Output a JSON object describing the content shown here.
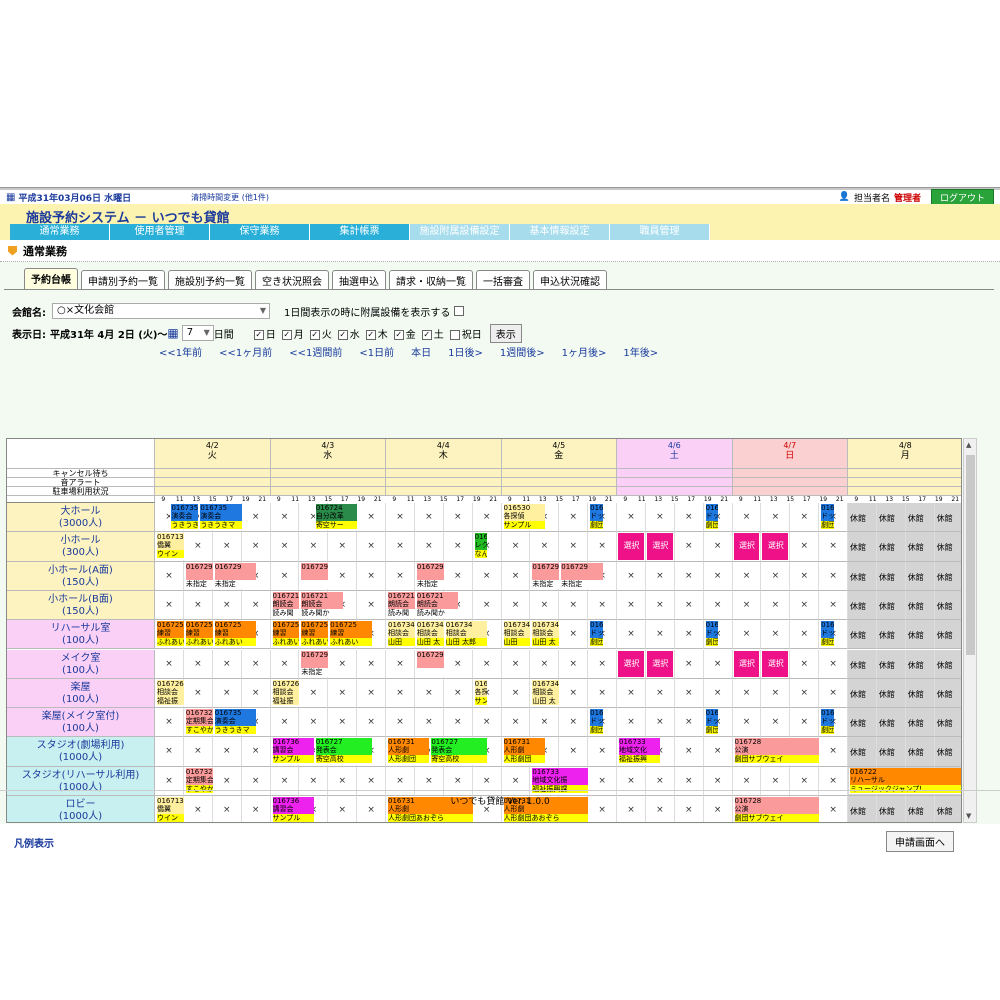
{
  "topbar": {
    "date": "平成31年03月06日 水曜日",
    "notice": "清掃時間変更 (他1件)",
    "user_label": "担当者名",
    "role": "管理者",
    "logout": "ログアウト"
  },
  "header": {
    "title": "施設予約システム － いつでも貸館"
  },
  "mainnav": [
    "通常業務",
    "使用者管理",
    "保守業務",
    "集計帳票",
    "施設附属設備設定",
    "基本情報設定",
    "職員管理"
  ],
  "section_title": "通常業務",
  "tabs": [
    "予約台帳",
    "申請別予約一覧",
    "施設別予約一覧",
    "空き状況照会",
    "抽選申込",
    "請求・収納一覧",
    "一括審査",
    "申込状況確認"
  ],
  "controls": {
    "venue_label": "会館名:",
    "venue_value": "○×文化会館",
    "equip_label": "1日間表示の時に附属設備を表示する",
    "date_label": "表示日:",
    "date_value": "平成31年 4月 2日 (火)～",
    "days_value": "7",
    "days_unit": "日間",
    "weekdays": [
      "日",
      "月",
      "火",
      "水",
      "木",
      "金",
      "土",
      "祝日"
    ],
    "weekday_checked": [
      true,
      true,
      true,
      true,
      true,
      true,
      true,
      false
    ],
    "show_button": "表示"
  },
  "navlinks": [
    "<<1年前",
    "<<1ヶ月前",
    "<<1週間前",
    "<1日前",
    "本日",
    "1日後>",
    "1週間後>",
    "1ヶ月後>",
    "1年後>"
  ],
  "days": [
    {
      "date": "4/2",
      "dow": "火",
      "color": "#fdf3c0",
      "text": "#000"
    },
    {
      "date": "4/3",
      "dow": "水",
      "color": "#fdf3c0",
      "text": "#000"
    },
    {
      "date": "4/4",
      "dow": "木",
      "color": "#fdf3c0",
      "text": "#000"
    },
    {
      "date": "4/5",
      "dow": "金",
      "color": "#fdf3c0",
      "text": "#000"
    },
    {
      "date": "4/6",
      "dow": "土",
      "color": "#fbd0f7",
      "text": "#1a3a9c"
    },
    {
      "date": "4/7",
      "dow": "日",
      "color": "#fbd0d0",
      "text": "#c00"
    },
    {
      "date": "4/8",
      "dow": "月",
      "color": "#fdf3c0",
      "text": "#000"
    }
  ],
  "hours": [
    "9",
    "11",
    "13",
    "15",
    "17",
    "19",
    "21"
  ],
  "status_rows": [
    "キャンセル待ち",
    "音アラート",
    "駐車場利用状況"
  ],
  "facilities": [
    {
      "name": "大ホール",
      "cap": "(3000人)",
      "color": "#fdf3c0"
    },
    {
      "name": "小ホール",
      "cap": "(300人)",
      "color": "#fdf3c0"
    },
    {
      "name": "小ホール(A面)",
      "cap": "(150人)",
      "color": "#fdf3c0"
    },
    {
      "name": "小ホール(B面)",
      "cap": "(150人)",
      "color": "#fdf3c0"
    },
    {
      "name": "リハーサル室",
      "cap": "(100人)",
      "color": "#fbd0f7"
    },
    {
      "name": "メイク室",
      "cap": "(100人)",
      "color": "#fbd0f7"
    },
    {
      "name": "楽屋",
      "cap": "(100人)",
      "color": "#fbd0f7"
    },
    {
      "name": "楽屋(メイク室付)",
      "cap": "(100人)",
      "color": "#fbd0f7"
    },
    {
      "name": "スタジオ(劇場利用)",
      "cap": "(1000人)",
      "color": "#c8f0f0"
    },
    {
      "name": "スタジオ(リハーサル利用)",
      "cap": "(1000人)",
      "color": "#c8f0f0"
    },
    {
      "name": "ロビー",
      "cap": "(1000人)",
      "color": "#c8f0f0"
    }
  ],
  "closed_label": "休館",
  "legend": "凡例表示",
  "apply_button": "申請画面へ",
  "footer": "いつでも貸館 Ver. 1.0.0",
  "bookings": [
    {
      "r": 0,
      "d": 0,
      "s": 1,
      "w": 2,
      "c": "#1e78e0",
      "t": [
        "016735",
        "演奏会",
        "うきうきマ"
      ],
      "b": "#ff0"
    },
    {
      "r": 0,
      "d": 0,
      "s": 3,
      "w": 3,
      "c": "#1e78e0",
      "t": [
        "016735",
        "演奏会",
        "うきうきマ"
      ],
      "b": "#ff0"
    },
    {
      "r": 0,
      "d": 1,
      "s": 3,
      "w": 3,
      "c": "#2a8a4a",
      "t": [
        "016724",
        "自分改革",
        "寄空サー"
      ],
      "b": "#ff0"
    },
    {
      "r": 0,
      "d": 3,
      "s": 0,
      "w": 3,
      "c": "#fff0a0",
      "t": [
        "016530",
        "各探偵",
        "サンプル"
      ],
      "b": "#ff0"
    },
    {
      "r": 0,
      "d": 3,
      "s": 6,
      "w": 1,
      "c": "#1e78e0",
      "t": [
        "016720",
        "ドッグス",
        "劇団ここに"
      ],
      "b": "#ff0"
    },
    {
      "r": 0,
      "d": 4,
      "s": 6,
      "w": 1,
      "c": "#1e78e0",
      "t": [
        "016720",
        "ドッグス",
        "劇団ここに"
      ],
      "b": "#ff0"
    },
    {
      "r": 0,
      "d": 5,
      "s": 6,
      "w": 1,
      "c": "#1e78e0",
      "t": [
        "016720",
        "ドッグス",
        "劇団ここに"
      ],
      "b": "#ff0"
    },
    {
      "r": 1,
      "d": 0,
      "s": 0,
      "w": 2,
      "c": "#fff0a0",
      "t": [
        "016713",
        "僑翼",
        "ウイン"
      ],
      "b": "#ff0"
    },
    {
      "r": 1,
      "d": 2,
      "s": 6,
      "w": 1,
      "c": "#22bb22",
      "t": [
        "016733",
        "レクレー",
        "なんでも"
      ],
      "b": "#ff0"
    },
    {
      "r": 4,
      "d": 0,
      "s": 0,
      "w": 2,
      "c": "#ff8800",
      "t": [
        "016725",
        "練習",
        "ふれあい"
      ],
      "b": "#ff0"
    },
    {
      "r": 4,
      "d": 0,
      "s": 2,
      "w": 2,
      "c": "#ff8800",
      "t": [
        "016725",
        "練習",
        "ふれあい"
      ],
      "b": "#ff0"
    },
    {
      "r": 4,
      "d": 0,
      "s": 4,
      "w": 3,
      "c": "#ff8800",
      "t": [
        "016725",
        "練習",
        "ふれあい"
      ],
      "b": "#ff0"
    },
    {
      "r": 4,
      "d": 1,
      "s": 0,
      "w": 2,
      "c": "#ff8800",
      "t": [
        "016725",
        "練習",
        "ふれあい"
      ],
      "b": "#ff0"
    },
    {
      "r": 4,
      "d": 1,
      "s": 2,
      "w": 2,
      "c": "#ff8800",
      "t": [
        "016725",
        "練習",
        "ふれあい"
      ],
      "b": "#ff0"
    },
    {
      "r": 4,
      "d": 1,
      "s": 4,
      "w": 3,
      "c": "#ff8800",
      "t": [
        "016725",
        "練習",
        "ふれあい"
      ],
      "b": "#ff0"
    },
    {
      "r": 4,
      "d": 2,
      "s": 0,
      "w": 2,
      "c": "#fff0a0",
      "t": [
        "016734",
        "相談会",
        "山田"
      ],
      "b": "#ff0"
    },
    {
      "r": 4,
      "d": 2,
      "s": 2,
      "w": 2,
      "c": "#fff0a0",
      "t": [
        "016734",
        "相談会",
        "山田 太"
      ],
      "b": "#ff0"
    },
    {
      "r": 4,
      "d": 2,
      "s": 4,
      "w": 3,
      "c": "#fff0a0",
      "t": [
        "016734",
        "相談会",
        "山田 太郎"
      ],
      "b": "#ff0"
    },
    {
      "r": 4,
      "d": 3,
      "s": 0,
      "w": 2,
      "c": "#fff0a0",
      "t": [
        "016734",
        "相談会",
        "山田"
      ],
      "b": "#ff0"
    },
    {
      "r": 4,
      "d": 3,
      "s": 2,
      "w": 2,
      "c": "#fff0a0",
      "t": [
        "016734",
        "相談会",
        "山田 太"
      ],
      "b": "#ff0"
    },
    {
      "r": 4,
      "d": 3,
      "s": 6,
      "w": 1,
      "c": "#1e78e0",
      "t": [
        "016720",
        "ドッグス",
        "劇団ここに"
      ],
      "b": "#ff0"
    },
    {
      "r": 4,
      "d": 4,
      "s": 6,
      "w": 1,
      "c": "#1e78e0",
      "t": [
        "016720",
        "ドッグス",
        "劇団ここに"
      ],
      "b": "#ff0"
    },
    {
      "r": 4,
      "d": 5,
      "s": 6,
      "w": 1,
      "c": "#1e78e0",
      "t": [
        "016720",
        "ドッグス",
        "劇団ここに"
      ],
      "b": "#ff0"
    },
    {
      "r": 6,
      "d": 0,
      "s": 0,
      "w": 2,
      "c": "#fff0a0",
      "t": [
        "016726",
        "相談会",
        "福祉振"
      ],
      "b": "#fff0a0"
    },
    {
      "r": 6,
      "d": 1,
      "s": 0,
      "w": 2,
      "c": "#fff0a0",
      "t": [
        "016726",
        "相談会",
        "福祉振"
      ],
      "b": "#fff0a0"
    },
    {
      "r": 6,
      "d": 2,
      "s": 6,
      "w": 1,
      "c": "#fff0a0",
      "t": [
        "016530",
        "各探偵",
        "サンプル"
      ],
      "b": "#ff0"
    },
    {
      "r": 6,
      "d": 3,
      "s": 2,
      "w": 2,
      "c": "#fff0a0",
      "t": [
        "016734",
        "相談会",
        "山田 太"
      ],
      "b": "#fff0a0"
    },
    {
      "r": 7,
      "d": 0,
      "s": 2,
      "w": 2,
      "c": "#fa9a9a",
      "t": [
        "016732",
        "定期集会",
        "すこやか"
      ],
      "b": "#ff0"
    },
    {
      "r": 7,
      "d": 0,
      "s": 4,
      "w": 3,
      "c": "#1e78e0",
      "t": [
        "016735",
        "演奏会",
        "うきうきマ"
      ],
      "b": "#ff0"
    },
    {
      "r": 7,
      "d": 3,
      "s": 6,
      "w": 1,
      "c": "#1e78e0",
      "t": [
        "016720",
        "ドッグス",
        "劇団ここに"
      ],
      "b": "#ff0"
    },
    {
      "r": 7,
      "d": 4,
      "s": 6,
      "w": 1,
      "c": "#1e78e0",
      "t": [
        "016720",
        "ドッグス",
        "劇団ここに"
      ],
      "b": "#ff0"
    },
    {
      "r": 7,
      "d": 5,
      "s": 6,
      "w": 1,
      "c": "#1e78e0",
      "t": [
        "016720",
        "ドッグス",
        "劇団ここに"
      ],
      "b": "#ff0"
    },
    {
      "r": 8,
      "d": 1,
      "s": 0,
      "w": 3,
      "c": "#ee22ee",
      "t": [
        "016736",
        "講習会",
        "サンプル"
      ],
      "b": "#ff0"
    },
    {
      "r": 8,
      "d": 1,
      "s": 3,
      "w": 4,
      "c": "#22ee22",
      "t": [
        "016727",
        "発表会",
        "寄空高校"
      ],
      "b": "#ff0"
    },
    {
      "r": 8,
      "d": 2,
      "s": 0,
      "w": 3,
      "c": "#ff8800",
      "t": [
        "016731",
        "人形劇",
        "人形劇団"
      ],
      "b": "#ff0"
    },
    {
      "r": 8,
      "d": 2,
      "s": 3,
      "w": 4,
      "c": "#22ee22",
      "t": [
        "016727",
        "発表会",
        "寄空高校"
      ],
      "b": "#ff0"
    },
    {
      "r": 8,
      "d": 3,
      "s": 0,
      "w": 3,
      "c": "#ff8800",
      "t": [
        "016731",
        "人形劇",
        "人形劇団"
      ],
      "b": "#ff0"
    },
    {
      "r": 8,
      "d": 4,
      "s": 0,
      "w": 3,
      "c": "#ee22ee",
      "t": [
        "016733",
        "地域文化",
        "福祉振興"
      ],
      "b": "#ff0"
    },
    {
      "r": 8,
      "d": 5,
      "s": 0,
      "w": 6,
      "c": "#fa9a9a",
      "t": [
        "016728",
        "公演",
        "劇団サブウェイ"
      ],
      "b": "#ff0"
    },
    {
      "r": 9,
      "d": 0,
      "s": 2,
      "w": 2,
      "c": "#fa9a9a",
      "t": [
        "016732",
        "定期集会",
        "すこやか"
      ],
      "b": "#ff0"
    },
    {
      "r": 9,
      "d": 3,
      "s": 2,
      "w": 4,
      "c": "#ee22ee",
      "t": [
        "016733",
        "地域文化振",
        "福祉振興課"
      ],
      "b": "#ff0"
    },
    {
      "r": 9,
      "d": 6,
      "s": 0,
      "w": 8,
      "c": "#ff8800",
      "t": [
        "016722",
        "リハーサル",
        "ミュージックジャンプ!"
      ],
      "b": "#ff0"
    },
    {
      "r": 10,
      "d": 0,
      "s": 0,
      "w": 2,
      "c": "#fff0a0",
      "t": [
        "016713",
        "僑翼",
        "ウイン"
      ],
      "b": "#ff0"
    },
    {
      "r": 10,
      "d": 1,
      "s": 0,
      "w": 3,
      "c": "#ee22ee",
      "t": [
        "016736",
        "講習会",
        "サンプル"
      ],
      "b": "#ff0"
    },
    {
      "r": 10,
      "d": 2,
      "s": 0,
      "w": 6,
      "c": "#ff8800",
      "t": [
        "016731",
        "人形劇",
        "人形劇団あおぞら"
      ],
      "b": "#ff0"
    },
    {
      "r": 10,
      "d": 3,
      "s": 0,
      "w": 6,
      "c": "#ff8800",
      "t": [
        "016731",
        "人形劇",
        "人形劇団あおぞら"
      ],
      "b": "#ff0"
    },
    {
      "r": 10,
      "d": 5,
      "s": 0,
      "w": 6,
      "c": "#fa9a9a",
      "t": [
        "016728",
        "公演",
        "劇団サブウェイ"
      ],
      "b": "#ff0"
    }
  ],
  "pink_blocks": [
    {
      "r": 2,
      "d": 0,
      "s": 2,
      "w": 2,
      "t": [
        "016729",
        "",
        "未指定"
      ]
    },
    {
      "r": 2,
      "d": 0,
      "s": 4,
      "w": 3,
      "t": [
        "016729",
        "",
        "未指定"
      ]
    },
    {
      "r": 2,
      "d": 1,
      "s": 2,
      "w": 2,
      "t": [
        "016729",
        "",
        ""
      ]
    },
    {
      "r": 2,
      "d": 2,
      "s": 2,
      "w": 2,
      "t": [
        "016729",
        "",
        "未指定"
      ]
    },
    {
      "r": 2,
      "d": 3,
      "s": 2,
      "w": 2,
      "t": [
        "016729",
        "",
        "未指定"
      ]
    },
    {
      "r": 2,
      "d": 3,
      "s": 4,
      "w": 3,
      "t": [
        "016729",
        "",
        "未指定"
      ]
    },
    {
      "r": 3,
      "d": 1,
      "s": 0,
      "w": 2,
      "t": [
        "016721",
        "朗読会",
        "読み聞"
      ]
    },
    {
      "r": 3,
      "d": 1,
      "s": 2,
      "w": 3,
      "t": [
        "016721",
        "朗読会",
        "読み聞か"
      ]
    },
    {
      "r": 3,
      "d": 2,
      "s": 0,
      "w": 2,
      "t": [
        "016721",
        "朗読会",
        "読み聞"
      ]
    },
    {
      "r": 3,
      "d": 2,
      "s": 2,
      "w": 3,
      "t": [
        "016721",
        "朗読会",
        "読み聞か"
      ]
    },
    {
      "r": 5,
      "d": 1,
      "s": 2,
      "w": 2,
      "t": [
        "016729",
        "",
        "未指定"
      ]
    },
    {
      "r": 5,
      "d": 2,
      "s": 2,
      "w": 2,
      "t": [
        "016729",
        "",
        ""
      ]
    }
  ],
  "select_label": "選択"
}
